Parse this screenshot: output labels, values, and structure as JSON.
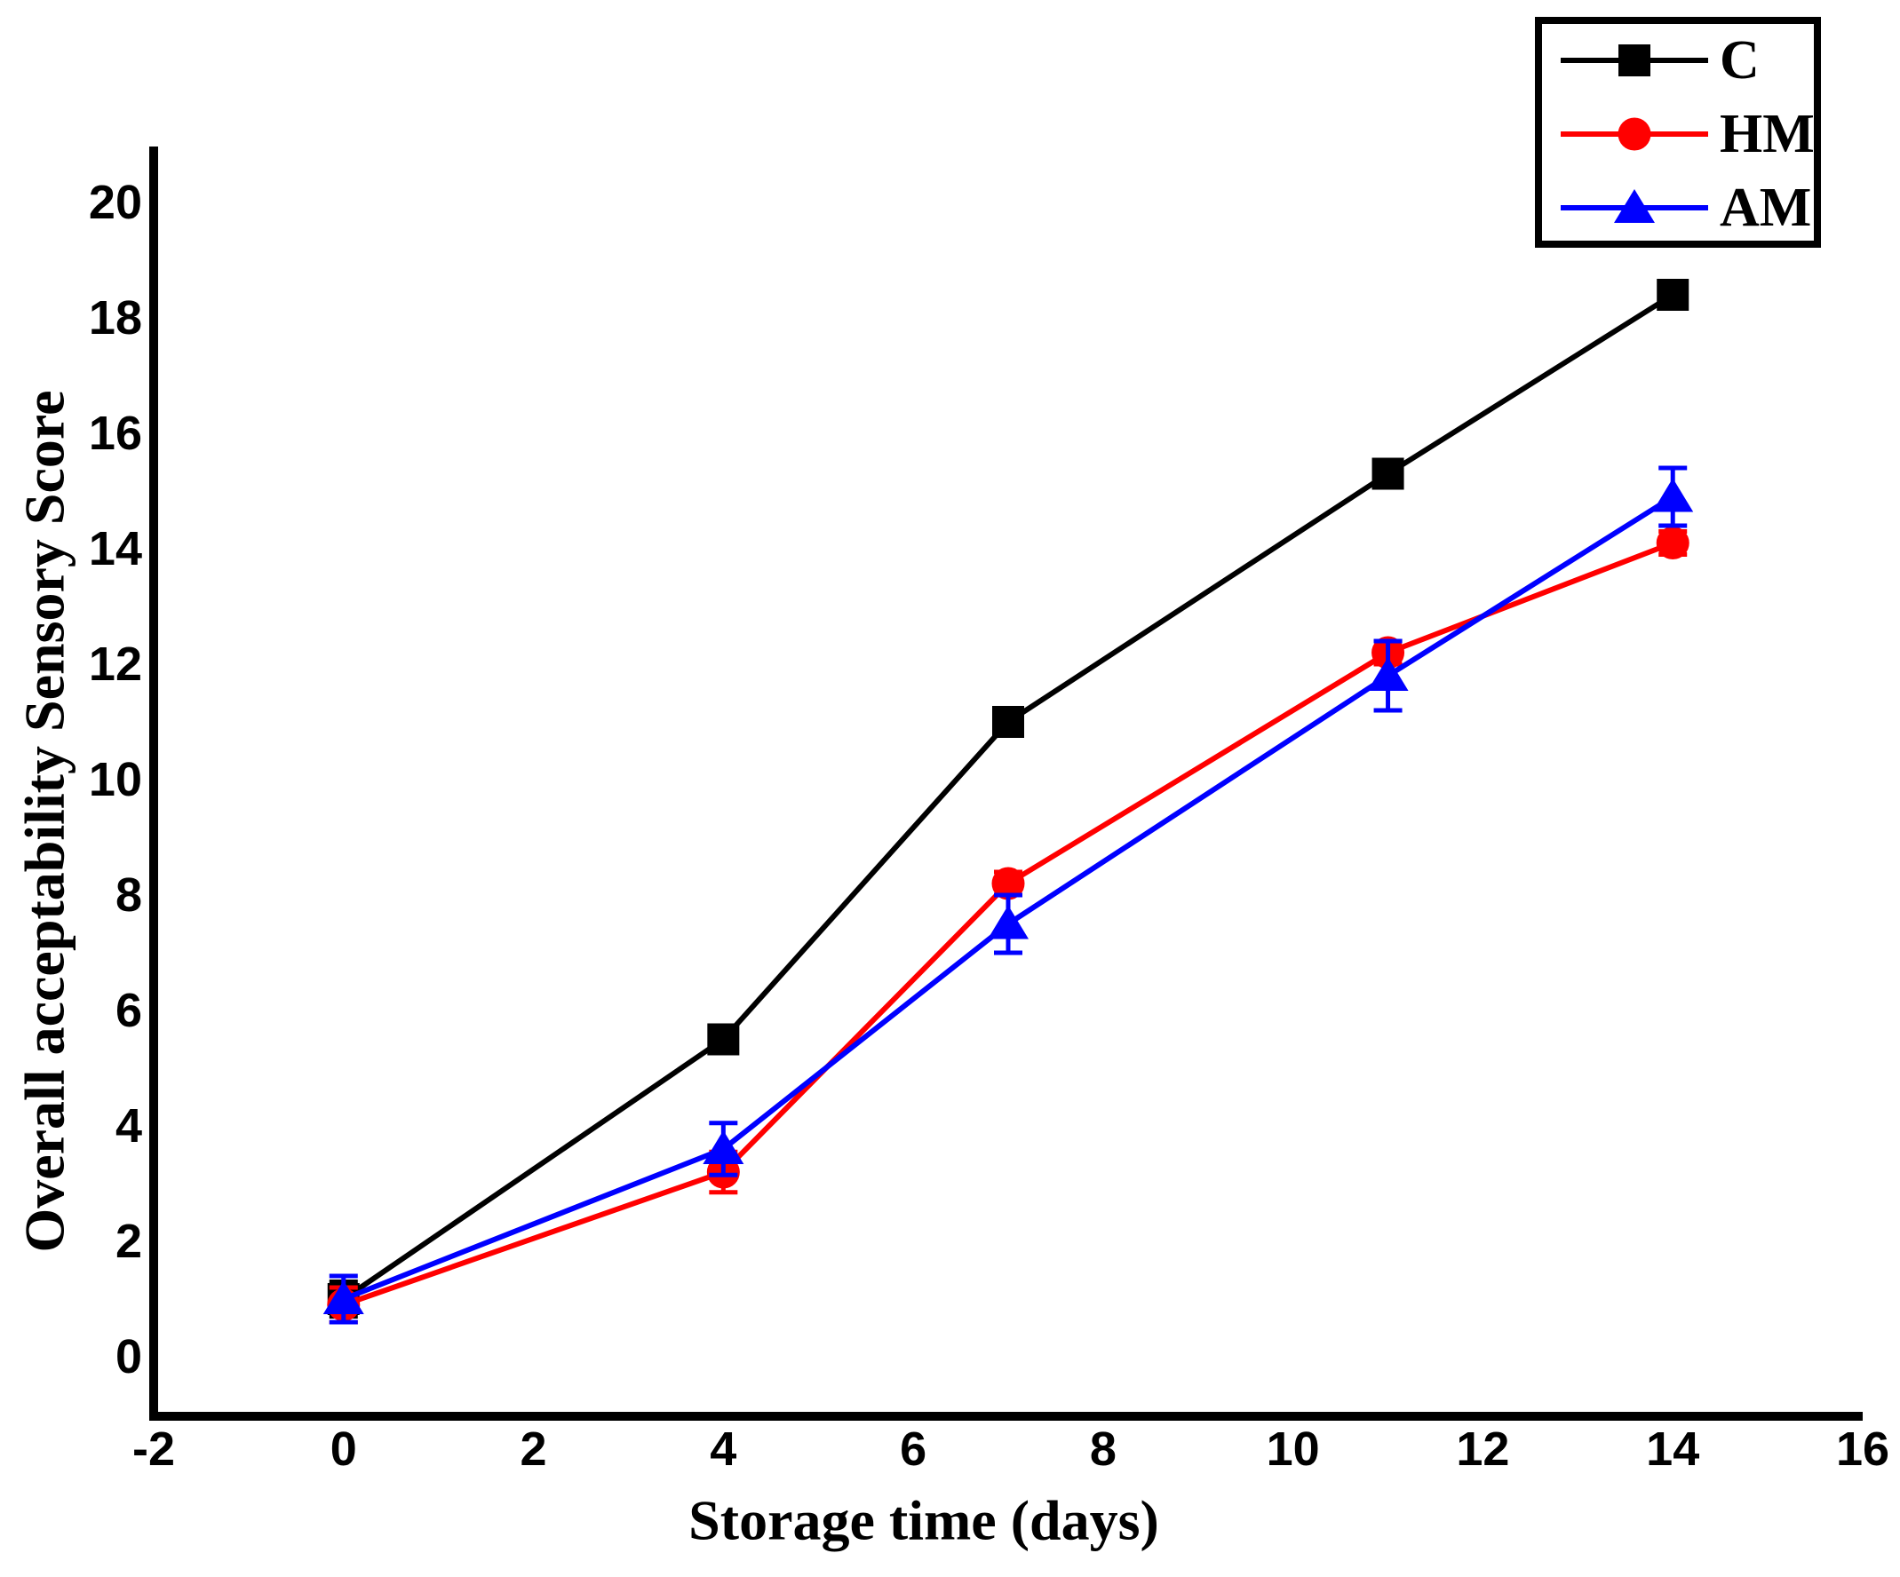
{
  "figure": {
    "background": "#ffffff",
    "axis_color": "#000000"
  },
  "chart_data": {
    "type": "line",
    "title": "",
    "xlabel": "Storage time (days)",
    "ylabel": "Overall acceptability Sensory Score",
    "x": [
      0,
      4,
      7,
      11,
      14
    ],
    "series": [
      {
        "name": "C",
        "color": "#000000",
        "marker": "square",
        "values": [
          1.0,
          5.5,
          11.0,
          15.3,
          18.4
        ],
        "errors": [
          0.3,
          0.1,
          0.1,
          0.1,
          0.1
        ]
      },
      {
        "name": "HM",
        "color": "#ff0000",
        "marker": "circle",
        "values": [
          0.9,
          3.2,
          8.2,
          12.2,
          14.1
        ],
        "errors": [
          0.3,
          0.35,
          0.2,
          0.2,
          0.2
        ]
      },
      {
        "name": "AM",
        "color": "#0000ff",
        "marker": "triangle",
        "values": [
          1.0,
          3.6,
          7.5,
          11.8,
          14.9
        ],
        "errors": [
          0.4,
          0.45,
          0.5,
          0.6,
          0.5
        ]
      }
    ],
    "xticks": [
      -2,
      0,
      2,
      4,
      6,
      8,
      10,
      12,
      14,
      16
    ],
    "yticks": [
      0,
      2,
      4,
      6,
      8,
      10,
      12,
      14,
      16,
      18,
      20
    ],
    "xlim": [
      -2,
      16
    ],
    "ylim": [
      -1,
      21.1
    ],
    "grid": false,
    "legend_position": "top-right",
    "legend": [
      "C",
      "HM",
      "AM"
    ]
  }
}
